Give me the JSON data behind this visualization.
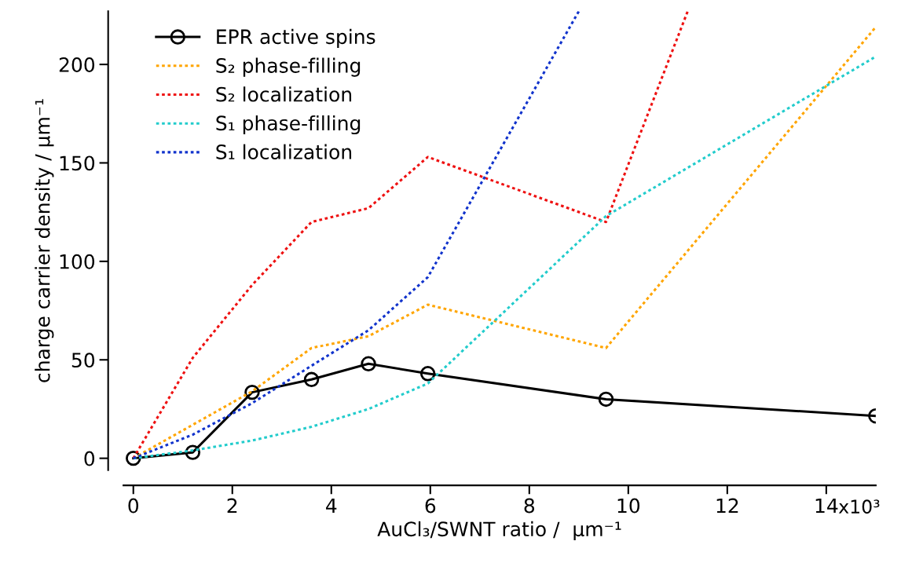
{
  "chart_data": {
    "type": "line",
    "xlabel": "AuCl₃/SWNT ratio /  µm⁻¹",
    "ylabel": "charge carrier density / µm⁻¹",
    "xlim": [
      -0.2,
      15
    ],
    "ylim": [
      -6,
      227
    ],
    "xticks": [
      0,
      2,
      4,
      6,
      8,
      10,
      12,
      14
    ],
    "yticks": [
      0,
      50,
      100,
      150,
      200
    ],
    "annotations": [
      "x10³"
    ],
    "grid": false,
    "legend": "top left",
    "series": [
      {
        "name": "EPR active spins",
        "color": "#000000",
        "marker": "circle",
        "line_style": "solid",
        "x": [
          0,
          1.2,
          2.4,
          3.6,
          4.75,
          5.95,
          9.55,
          15
        ],
        "values": [
          0,
          3,
          33.5,
          40,
          48,
          43,
          30,
          21.5
        ]
      },
      {
        "name": "S₂ phase-filling",
        "color": "#ffa500",
        "marker": "none",
        "line_style": "dotted",
        "x": [
          0,
          2.4,
          3.6,
          4.75,
          5.95,
          9.55,
          15
        ],
        "values": [
          0,
          34,
          56,
          62,
          78,
          56,
          219
        ]
      },
      {
        "name": "S₂ localization",
        "color": "#ee1111",
        "marker": "none",
        "line_style": "dotted",
        "x": [
          0,
          1.2,
          2.4,
          3.6,
          4.75,
          5.95,
          9.55,
          11.2
        ],
        "values": [
          0,
          51,
          88,
          120,
          127,
          153,
          120,
          227
        ]
      },
      {
        "name": "S₁ phase-filling",
        "color": "#22cccc",
        "marker": "none",
        "line_style": "dotted",
        "x": [
          0,
          1.2,
          2.4,
          3.6,
          4.75,
          5.95,
          9.55,
          15
        ],
        "values": [
          0,
          4,
          9,
          16,
          25,
          38,
          123,
          204
        ]
      },
      {
        "name": "S₁ localization",
        "color": "#1133cc",
        "marker": "none",
        "line_style": "dotted",
        "x": [
          0,
          1.2,
          2.4,
          3.6,
          4.75,
          5.95,
          9.0
        ],
        "values": [
          0,
          12,
          28,
          47,
          65,
          92,
          227
        ]
      }
    ]
  }
}
